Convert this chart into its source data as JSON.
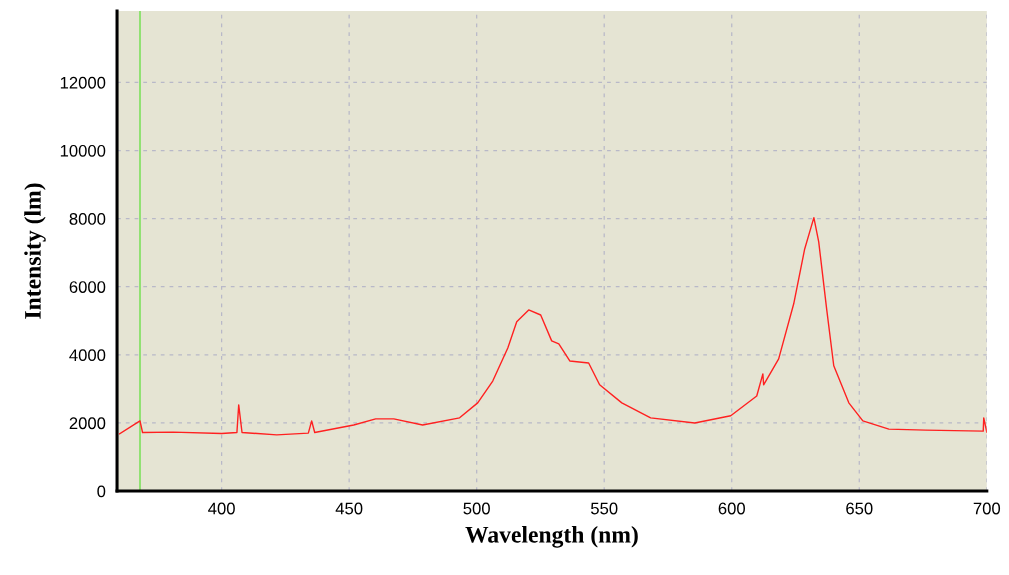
{
  "chart_data": {
    "type": "line",
    "xlabel": "Wavelength (nm)",
    "ylabel": "Intensity (lm)",
    "xlim": [
      359,
      700
    ],
    "xticks": [
      400,
      450,
      500,
      550,
      600,
      650,
      700
    ],
    "ylim": [
      0,
      14100
    ],
    "yticks": [
      0,
      2000,
      4000,
      6000,
      8000,
      10000,
      12000
    ],
    "grid": true,
    "line_style": "solid",
    "marker": "none",
    "ref_lines": [
      {
        "axis": "x",
        "value": 368,
        "color": "#80e060"
      }
    ],
    "series": [
      {
        "color": "#ff2020",
        "x": [
          360,
          368,
          369,
          381,
          400,
          406,
          406.7,
          408,
          421.6,
          434,
          435.3,
          436.5,
          451.8,
          460.4,
          467.5,
          478.8,
          493.3,
          500.4,
          506.3,
          512.2,
          515.7,
          520.4,
          525.1,
          529.4,
          532.2,
          536.5,
          543.9,
          548.2,
          556.9,
          568.2,
          585.5,
          599.6,
          609.8,
          612.2,
          612.5,
          618.4,
          624.3,
          628.6,
          632.2,
          634.1,
          637.3,
          640,
          645.9,
          651.4,
          661.6,
          676,
          698.6,
          698.8,
          700
        ],
        "values": [
          1680,
          2060,
          1720,
          1730,
          1690,
          1720,
          2530,
          1720,
          1650,
          1700,
          2060,
          1720,
          1940,
          2120,
          2120,
          1940,
          2150,
          2590,
          3230,
          4200,
          4970,
          5320,
          5170,
          4410,
          4320,
          3820,
          3760,
          3120,
          2590,
          2150,
          2000,
          2210,
          2790,
          3440,
          3120,
          3880,
          5500,
          7110,
          8030,
          7320,
          5290,
          3680,
          2590,
          2060,
          1820,
          1790,
          1760,
          2150,
          1730
        ]
      }
    ]
  }
}
